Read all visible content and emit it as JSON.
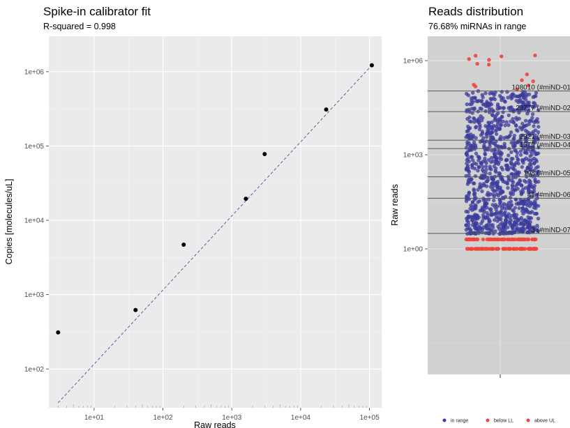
{
  "chart_data": [
    {
      "type": "scatter",
      "title": "Spike-in calibrator fit",
      "subtitle": "R-squared = 0.998",
      "xlabel": "Raw reads",
      "ylabel": "Copies [molecules/uL]",
      "x_scale": "log10",
      "y_scale": "log10",
      "xlim": [
        2.2,
        150000
      ],
      "ylim": [
        30,
        3000000
      ],
      "grid": true,
      "x_ticks": [
        {
          "value": 10,
          "label": "1e+01"
        },
        {
          "value": 100,
          "label": "1e+02"
        },
        {
          "value": 1000,
          "label": "1e+03"
        },
        {
          "value": 10000,
          "label": "1e+04"
        },
        {
          "value": 100000,
          "label": "1e+05"
        }
      ],
      "y_ticks": [
        {
          "value": 100,
          "label": "1e+02"
        },
        {
          "value": 1000,
          "label": "1e+03"
        },
        {
          "value": 10000,
          "label": "1e+04"
        },
        {
          "value": 100000,
          "label": "1e+05"
        },
        {
          "value": 1000000,
          "label": "1e+06"
        }
      ],
      "points": [
        {
          "x": 3,
          "y": 310
        },
        {
          "x": 40,
          "y": 620
        },
        {
          "x": 200,
          "y": 4700
        },
        {
          "x": 1600,
          "y": 19500
        },
        {
          "x": 3000,
          "y": 78000
        },
        {
          "x": 23500,
          "y": 310000
        },
        {
          "x": 108000,
          "y": 1220000
        }
      ],
      "fit_line": {
        "style": "dashed",
        "color": "#5a5aa8",
        "from": {
          "x": 3,
          "y": 35
        },
        "to": {
          "x": 108000,
          "y": 1220000
        }
      },
      "colors": {
        "panel_bg": "#ebebeb",
        "grid": "#ffffff",
        "points": "#000000"
      }
    },
    {
      "type": "scatter",
      "title": "Reads distribution",
      "subtitle": "76.68% miRNAs in range",
      "ylabel": "Raw reads",
      "xlabel": "",
      "y_scale": "log10",
      "ylim": [
        0.0001,
        6000000
      ],
      "grid": true,
      "y_ticks": [
        {
          "value": 1,
          "label": "1e+00"
        },
        {
          "value": 1000,
          "label": "1e+03"
        },
        {
          "value": 1000000,
          "label": "1e+06"
        }
      ],
      "reference_lines": [
        {
          "value": 108010,
          "label": "108010 (#miND-01"
        },
        {
          "value": 23777,
          "label": "23777 (#miND-02"
        },
        {
          "value": 2921,
          "label": "2921 (#miND-03"
        },
        {
          "value": 1579,
          "label": "1579 (#miND-04"
        },
        {
          "value": 198,
          "label": "198 (#miND-05"
        },
        {
          "value": 41,
          "label": "41 (#miND-06"
        },
        {
          "value": 3.1,
          "label": "3 (#miND-07"
        }
      ],
      "series": [
        {
          "name": "in range",
          "color": "#3b3b9c",
          "approx_count": 1100,
          "y_range": [
            3,
            108000
          ]
        },
        {
          "name": "below LL",
          "color": "#f0443a",
          "approx_count": 130,
          "y_range": [
            1,
            2
          ]
        },
        {
          "name": "above UL",
          "color": "#f0443a",
          "approx_count": 14,
          "y_range": [
            120000,
            1600000
          ]
        }
      ],
      "legend_position": "bottom",
      "colors": {
        "panel_bg": "#d1d1d1",
        "grid": "#ebebeb",
        "ref_lines": "#555555"
      }
    }
  ]
}
